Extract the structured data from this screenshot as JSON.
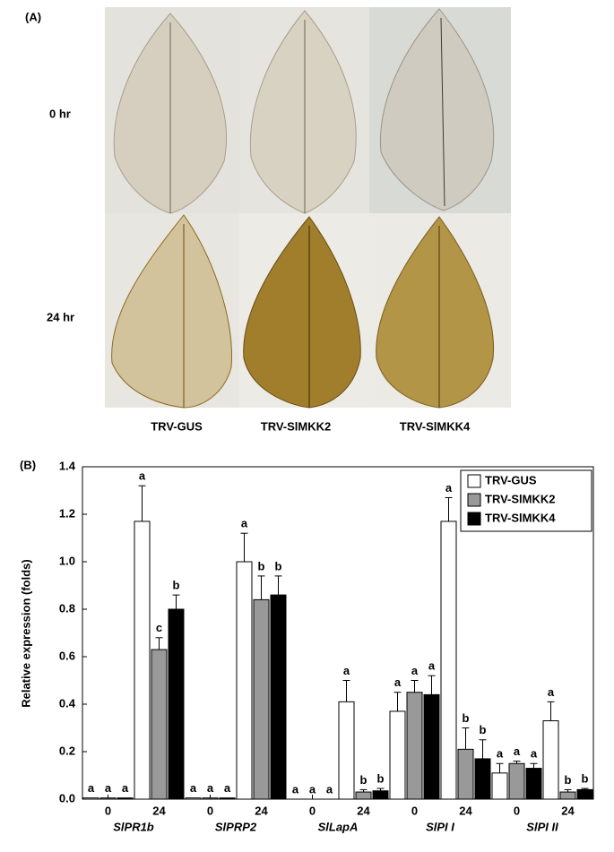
{
  "panel_a": {
    "label": "(A)",
    "rows": [
      "0 hr",
      "24 hr"
    ],
    "columns": [
      "TRV-GUS",
      "TRV-SlMKK2",
      "TRV-SlMKK4"
    ]
  },
  "chart_data": {
    "type": "bar",
    "panel_label": "(B)",
    "y_label": "Relative expression (folds)",
    "categories": [
      "0",
      "24",
      "0",
      "24",
      "0",
      "24",
      "0",
      "24",
      "0",
      "24"
    ],
    "groups": [
      "SlPR1b",
      "SlPRP2",
      "SlLapA",
      "SlPI I",
      "SlPI II"
    ],
    "series": [
      {
        "name": "TRV-GUS",
        "color": "#ffffff",
        "values": [
          0.005,
          1.17,
          0.005,
          1.0,
          0,
          0.41,
          0.37,
          1.17,
          0.11,
          0.33
        ],
        "errors": [
          null,
          0.15,
          null,
          0.12,
          null,
          0.09,
          0.08,
          0.1,
          0.04,
          0.08
        ],
        "letters": [
          "a",
          "a",
          "a",
          "a",
          "a",
          "a",
          "a",
          "a",
          "a",
          "a"
        ]
      },
      {
        "name": "TRV-SlMKK2",
        "color": "#999999",
        "values": [
          0.005,
          0.63,
          0.005,
          0.84,
          0,
          0.03,
          0.45,
          0.21,
          0.15,
          0.03
        ],
        "errors": [
          null,
          0.05,
          null,
          0.1,
          null,
          0.01,
          0.05,
          0.09,
          0.01,
          0.01
        ],
        "letters": [
          "a",
          "c",
          "a",
          "b",
          "a",
          "b",
          "a",
          "b",
          "a",
          "b"
        ]
      },
      {
        "name": "TRV-SlMKK4",
        "color": "#000000",
        "values": [
          0.005,
          0.8,
          0.005,
          0.86,
          0,
          0.035,
          0.44,
          0.17,
          0.13,
          0.04
        ],
        "errors": [
          null,
          0.06,
          null,
          0.08,
          null,
          0.01,
          0.08,
          0.08,
          0.02,
          0.005
        ],
        "letters": [
          "a",
          "b",
          "a",
          "b",
          "a",
          "b",
          "a",
          "b",
          "a",
          "b"
        ]
      }
    ],
    "ylim": [
      0,
      1.4
    ],
    "yticks": [
      {
        "value": 0,
        "label": "0.0"
      },
      0.2,
      0.4,
      0.6,
      0.8,
      {
        "value": 1,
        "label": "1.0"
      },
      1.2,
      1.4
    ],
    "legend": "upper right"
  }
}
